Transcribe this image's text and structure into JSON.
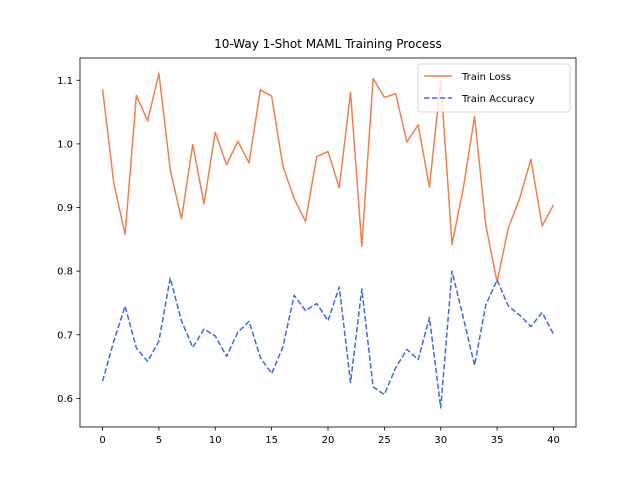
{
  "chart_data": {
    "type": "line",
    "title": "10-Way 1-Shot MAML Training Process",
    "xlabel": "",
    "ylabel": "",
    "xlim": [
      -2,
      42
    ],
    "ylim": [
      0.555,
      1.135
    ],
    "xticks": [
      0,
      5,
      10,
      15,
      20,
      25,
      30,
      35,
      40
    ],
    "yticks": [
      0.6,
      0.7,
      0.8,
      0.9,
      1.0,
      1.1
    ],
    "ytick_labels": [
      "0.6",
      "0.7",
      "0.8",
      "0.9",
      "1.0",
      "1.1"
    ],
    "grid": false,
    "legend_position": "top-right",
    "x": [
      0,
      1,
      2,
      3,
      4,
      5,
      6,
      7,
      8,
      9,
      10,
      11,
      12,
      13,
      14,
      15,
      16,
      17,
      18,
      19,
      20,
      21,
      22,
      23,
      24,
      25,
      26,
      27,
      28,
      29,
      30,
      31,
      32,
      33,
      34,
      35,
      36,
      37,
      38,
      39,
      40
    ],
    "series": [
      {
        "name": "Train Loss",
        "color": "#f08050",
        "dash": "solid",
        "values": [
          1.086,
          0.938,
          0.858,
          1.076,
          1.036,
          1.111,
          0.96,
          0.882,
          0.999,
          0.906,
          1.018,
          0.967,
          1.004,
          0.97,
          1.085,
          1.075,
          0.965,
          0.914,
          0.878,
          0.98,
          0.988,
          0.931,
          1.081,
          0.839,
          1.103,
          1.073,
          1.079,
          1.003,
          1.03,
          0.932,
          1.1,
          0.842,
          0.93,
          1.043,
          0.872,
          0.783,
          0.868,
          0.914,
          0.976,
          0.871,
          0.904
        ]
      },
      {
        "name": "Train Accuracy",
        "color": "#4169e1",
        "dash": "dashed",
        "values": [
          0.627,
          0.69,
          0.745,
          0.679,
          0.658,
          0.69,
          0.789,
          0.722,
          0.68,
          0.709,
          0.698,
          0.666,
          0.704,
          0.721,
          0.664,
          0.639,
          0.681,
          0.762,
          0.738,
          0.749,
          0.722,
          0.775,
          0.625,
          0.772,
          0.618,
          0.606,
          0.648,
          0.677,
          0.661,
          0.727,
          0.585,
          0.8,
          0.727,
          0.652,
          0.747,
          0.786,
          0.745,
          0.731,
          0.713,
          0.735,
          0.701
        ]
      }
    ]
  }
}
